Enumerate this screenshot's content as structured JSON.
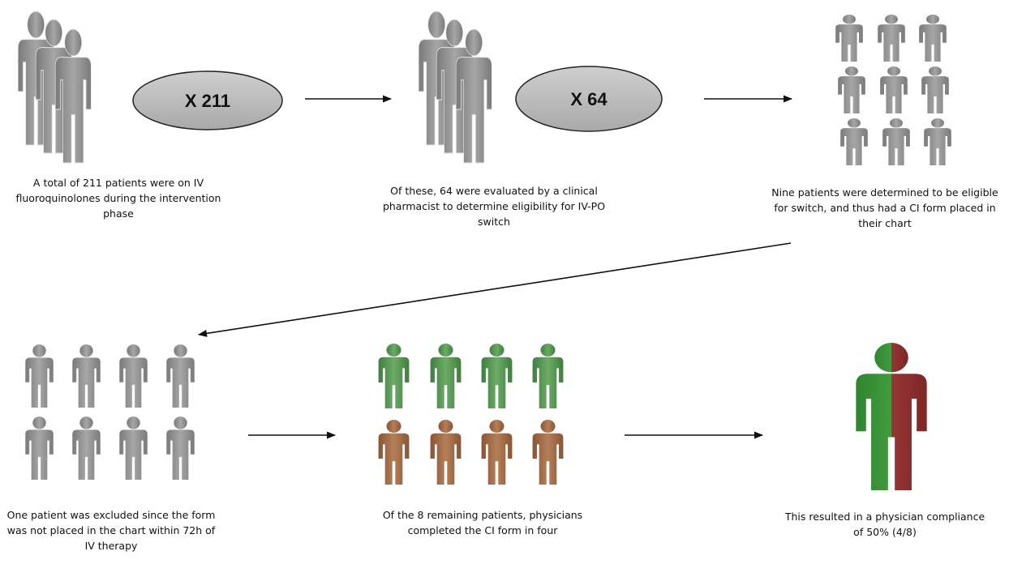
{
  "steps": {
    "s1": {
      "badge": "X 211",
      "caption": "A total of 211 patients were on IV fluoroquinolones during the intervention phase"
    },
    "s2": {
      "badge": "X 64",
      "caption": "Of these, 64 were evaluated by a clinical pharmacist to determine eligibility for IV-PO switch"
    },
    "s3": {
      "caption": "Nine patients were determined to be eligible for switch, and thus had a CI form placed in their chart"
    },
    "s4": {
      "caption": "One patient was excluded since the form was not placed in the chart within 72h of IV therapy"
    },
    "s5": {
      "caption": "Of the 8 remaining patients, physicians completed the CI form in four"
    },
    "s6": {
      "caption": "This resulted in a physician compliance of 50% (4/8)"
    }
  },
  "icons": {
    "patient": "person-icon",
    "arrow": "arrow-icon"
  },
  "colors": {
    "grey": "#8f8f8f",
    "green": "#5aa05a",
    "brown": "#a06a48",
    "compliant": "#3f9a3f",
    "noncompliant": "#a23838",
    "ellipse_fill": "#bcbcbc"
  }
}
